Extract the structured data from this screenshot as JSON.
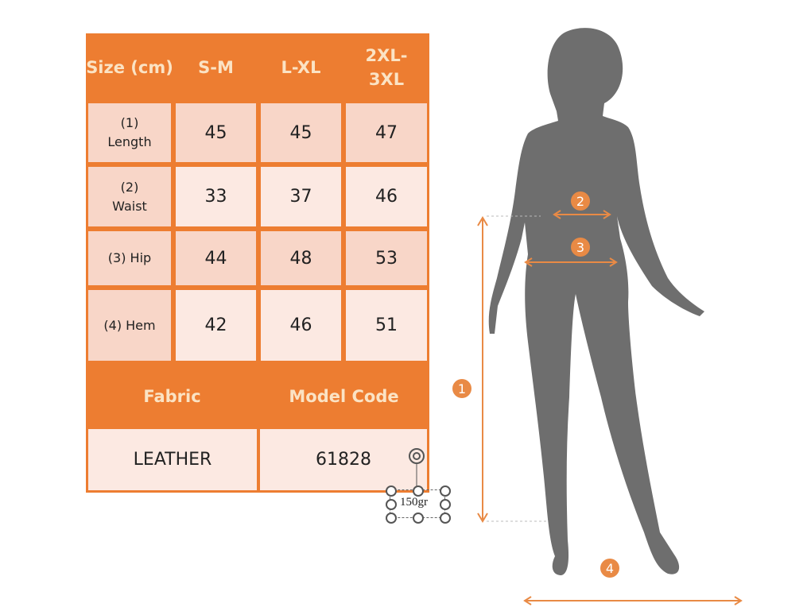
{
  "table": {
    "header": [
      "Size (cm)",
      "S-M",
      "L-XL",
      "2XL-3XL"
    ],
    "rows": [
      {
        "label": "(1) Length",
        "values": [
          "45",
          "45",
          "47"
        ]
      },
      {
        "label": "(2) Waist",
        "values": [
          "33",
          "37",
          "46"
        ]
      },
      {
        "label": "(3) Hip",
        "values": [
          "44",
          "48",
          "53"
        ]
      },
      {
        "label": "(4) Hem",
        "values": [
          "42",
          "46",
          "51"
        ]
      }
    ],
    "fabric_label": "Fabric",
    "model_code_label": "Model Code",
    "fabric": "LEATHER",
    "model_code": "61828"
  },
  "textbox": "150gr",
  "markers": [
    "1",
    "2",
    "3",
    "4"
  ],
  "colors": {
    "accent": "#ed7d31",
    "silhouette": "#6e6e6e"
  }
}
